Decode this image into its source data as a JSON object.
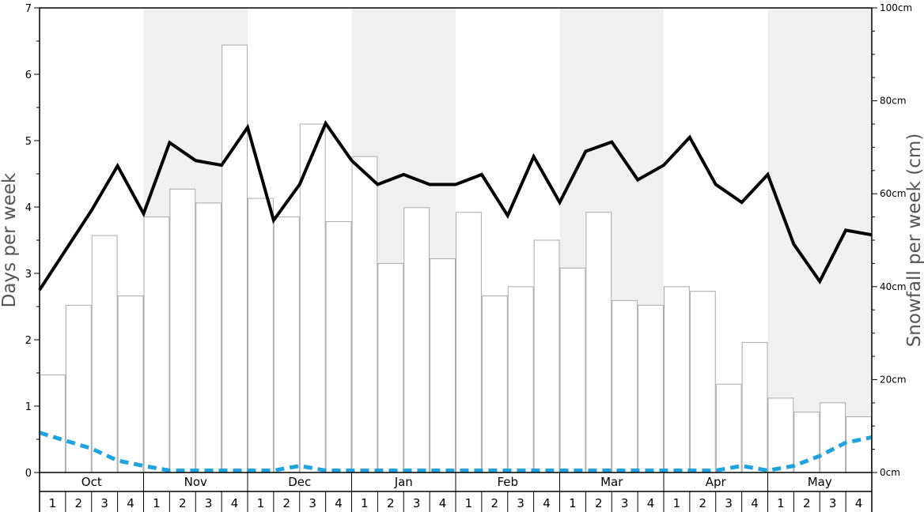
{
  "chart_data": {
    "type": "bar",
    "left_axis": {
      "title": "Days per week",
      "min": 0,
      "max": 7,
      "ticks": [
        "0",
        "1",
        "2",
        "3",
        "4",
        "5",
        "6",
        "7"
      ]
    },
    "right_axis": {
      "title": "Snowfall per week (cm)",
      "min": 0,
      "max": 100,
      "ticks": [
        "0cm",
        "20cm",
        "40cm",
        "60cm",
        "80cm",
        "100cm"
      ]
    },
    "months": [
      "Oct",
      "Nov",
      "Dec",
      "Jan",
      "Feb",
      "Mar",
      "Apr",
      "May"
    ],
    "weeks": [
      "1",
      "2",
      "3",
      "4"
    ],
    "shaded_months": [
      "Nov",
      "Jan",
      "Mar",
      "May"
    ],
    "shade_color": "#f0f0f0",
    "series": [
      {
        "kind": "bar",
        "axis": "right",
        "units": "cm",
        "color": "#ffffff",
        "stroke": "#aaaaaa",
        "values": [
          21,
          36,
          51,
          38,
          55,
          61,
          58,
          92,
          59,
          55,
          75,
          54,
          68,
          45,
          57,
          46,
          56,
          38,
          40,
          50,
          44,
          56,
          37,
          36,
          40,
          39,
          19,
          28,
          16,
          13,
          15,
          12
        ]
      },
      {
        "kind": "line",
        "axis": "left",
        "units": "days",
        "color": "#000000",
        "style": "solid",
        "values": [
          2.75,
          3.35,
          3.95,
          4.62,
          3.9,
          4.97,
          4.7,
          4.63,
          5.2,
          3.8,
          4.34,
          5.26,
          4.7,
          4.34,
          4.49,
          4.34,
          4.34,
          4.49,
          3.87,
          4.76,
          4.07,
          4.84,
          4.98,
          4.41,
          4.63,
          5.05,
          4.34,
          4.07,
          4.49,
          3.44,
          2.88,
          3.65,
          3.58
        ]
      },
      {
        "kind": "line",
        "axis": "left",
        "units": "days",
        "color": "#1fa3e0",
        "style": "dashed",
        "values": [
          0.6,
          0.48,
          0.36,
          0.18,
          0.1,
          0.03,
          0.03,
          0.03,
          0.03,
          0.03,
          0.1,
          0.03,
          0.03,
          0.03,
          0.03,
          0.03,
          0.03,
          0.03,
          0.03,
          0.03,
          0.03,
          0.03,
          0.03,
          0.03,
          0.03,
          0.03,
          0.03,
          0.1,
          0.03,
          0.1,
          0.25,
          0.45,
          0.53
        ]
      }
    ]
  }
}
